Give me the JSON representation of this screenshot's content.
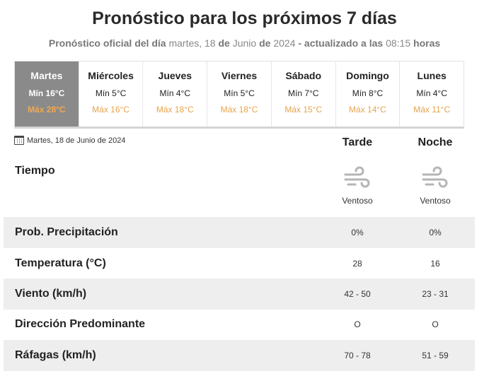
{
  "header": {
    "title": "Pronóstico para los próximos 7 días",
    "subtitle_prefix": "Pronóstico oficial del día",
    "subtitle_date_part1": "martes, 18",
    "subtitle_de1": "de",
    "subtitle_date_part2": "Junio",
    "subtitle_de2": "de",
    "subtitle_year": "2024",
    "subtitle_updated": "- actualizado a las",
    "subtitle_time": "08:15",
    "subtitle_suffix": "horas"
  },
  "days": [
    {
      "name": "Martes",
      "min": "Mín 16°C",
      "max": "Máx 28°C",
      "active": true
    },
    {
      "name": "Miércoles",
      "min": "Mín 5°C",
      "max": "Máx 16°C"
    },
    {
      "name": "Jueves",
      "min": "Mín 4°C",
      "max": "Máx 18°C"
    },
    {
      "name": "Viernes",
      "min": "Mín 5°C",
      "max": "Máx 18°C"
    },
    {
      "name": "Sábado",
      "min": "Mín 7°C",
      "max": "Máx 15°C"
    },
    {
      "name": "Domingo",
      "min": "Mín 8°C",
      "max": "Máx 14°C"
    },
    {
      "name": "Lunes",
      "min": "Mín 4°C",
      "max": "Máx 11°C"
    }
  ],
  "detail": {
    "date": "Martes, 18 de Junio de 2024",
    "icon": "calendar-icon",
    "col_tarde": "Tarde",
    "col_noche": "Noche",
    "tiempo_label": "Tiempo",
    "tiempo_icon": "wind-icon",
    "tiempo_tarde": "Ventoso",
    "tiempo_noche": "Ventoso",
    "rows": [
      {
        "label": "Prob. Precipitación",
        "tarde": "0%",
        "noche": "0%"
      },
      {
        "label": "Temperatura (°C)",
        "tarde": "28",
        "noche": "16"
      },
      {
        "label": "Viento (km/h)",
        "tarde": "42 - 50",
        "noche": "23 - 31"
      },
      {
        "label": "Dirección Predominante",
        "tarde": "O",
        "noche": "O"
      },
      {
        "label": "Ráfagas (km/h)",
        "tarde": "70 - 78",
        "noche": "51 - 59"
      }
    ]
  },
  "colors": {
    "active_day_bg": "#8a8a8a",
    "max_temp": "#e8a34c",
    "row_shade": "#eeeeee"
  }
}
